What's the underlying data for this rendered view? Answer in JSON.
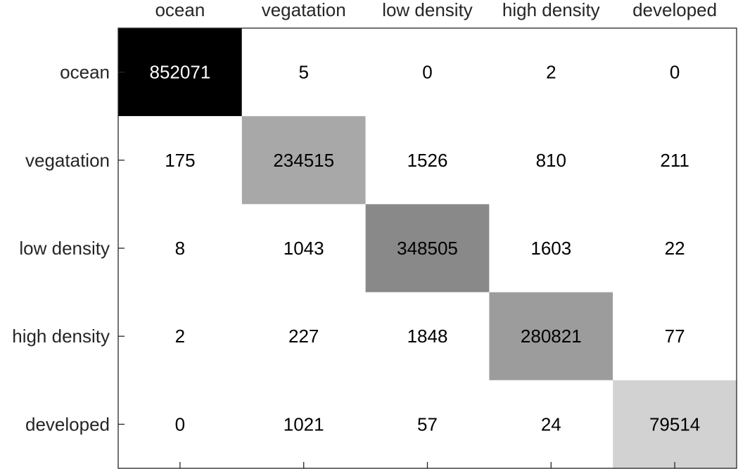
{
  "chart_data": {
    "type": "heatmap",
    "x_categories": [
      "ocean",
      "vegatation",
      "low density",
      "high density",
      "developed"
    ],
    "y_categories": [
      "ocean",
      "vegatation",
      "low density",
      "high density",
      "developed"
    ],
    "values": [
      [
        852071,
        5,
        0,
        2,
        0
      ],
      [
        175,
        234515,
        1526,
        810,
        211
      ],
      [
        8,
        1043,
        348505,
        1603,
        22
      ],
      [
        2,
        227,
        1848,
        280821,
        77
      ],
      [
        0,
        1021,
        57,
        24,
        79514
      ]
    ],
    "colormap": "grayscale-reversed",
    "xaxis_position": "top",
    "grid": false
  }
}
